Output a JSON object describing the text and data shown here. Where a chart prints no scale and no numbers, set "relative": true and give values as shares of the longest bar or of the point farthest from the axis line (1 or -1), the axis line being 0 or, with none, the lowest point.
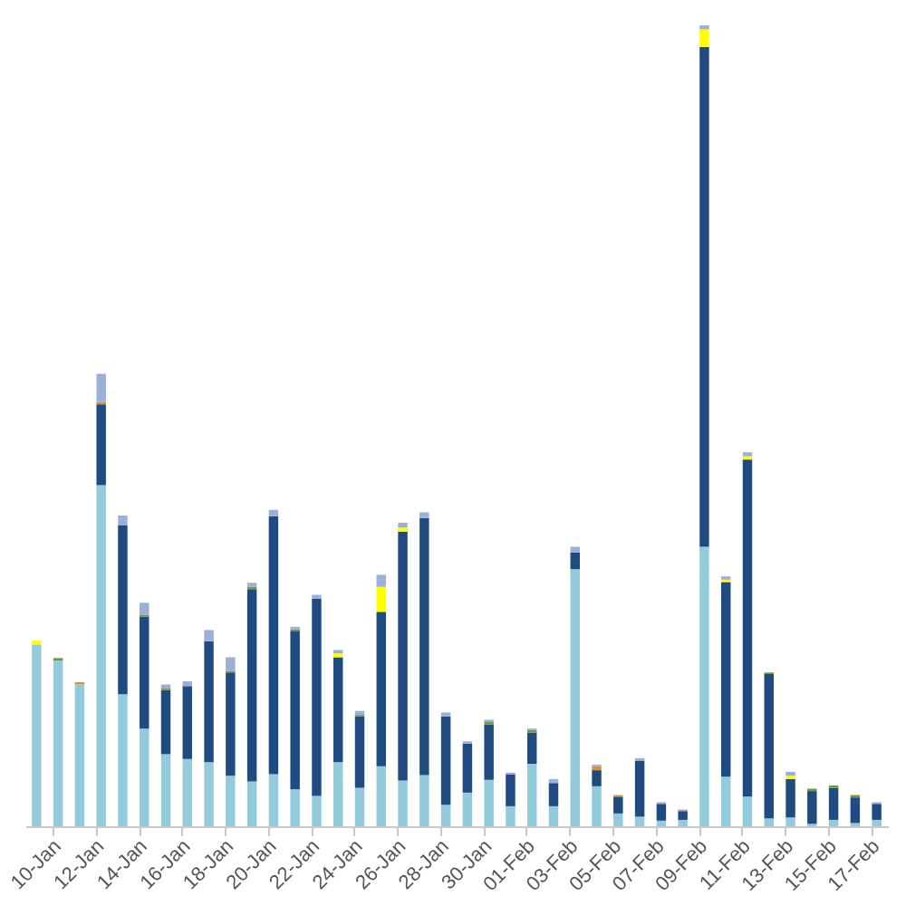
{
  "chart_data": {
    "type": "bar",
    "stacked": true,
    "relative": true,
    "categories": [
      null,
      "10-Jan",
      null,
      "12-Jan",
      null,
      "14-Jan",
      null,
      "16-Jan",
      null,
      "18-Jan",
      null,
      "20-Jan",
      null,
      "22-Jan",
      null,
      "24-Jan",
      null,
      "26-Jan",
      null,
      "28-Jan",
      null,
      "30-Jan",
      null,
      "01-Feb",
      null,
      "03-Feb",
      null,
      "05-Feb",
      null,
      "07-Feb",
      null,
      "09-Feb",
      null,
      "11-Feb",
      null,
      "13-Feb",
      null,
      "15-Feb",
      null,
      "17-Feb"
    ],
    "series": [
      {
        "color": "#93cbdc",
        "values": [
          0.227,
          0.207,
          0.177,
          0.426,
          0.165,
          0.122,
          0.09,
          0.084,
          0.08,
          0.063,
          0.056,
          0.065,
          0.046,
          0.038,
          0.08,
          0.048,
          0.075,
          0.057,
          0.064,
          0.027,
          0.042,
          0.058,
          0.025,
          0.078,
          0.025,
          0.321,
          0.05,
          0.016,
          0.012,
          0.007,
          0.008,
          0.349,
          0.062,
          0.037,
          0.01,
          0.011,
          0.003,
          0.008,
          0.004,
          0.008
        ]
      },
      {
        "color": "#1f4b81",
        "values": [
          null,
          null,
          null,
          0.101,
          0.211,
          0.14,
          0.08,
          0.091,
          0.151,
          0.129,
          0.24,
          0.322,
          0.198,
          0.246,
          0.131,
          0.089,
          0.192,
          0.311,
          0.321,
          0.11,
          0.061,
          0.069,
          0.04,
          0.039,
          0.029,
          0.021,
          0.02,
          0.021,
          0.07,
          0.021,
          0.011,
          0.624,
          0.243,
          0.421,
          0.18,
          0.048,
          0.041,
          0.04,
          0.032,
          0.02
        ]
      },
      {
        "color": "#6f9a3e",
        "values": [
          null,
          0.003,
          null,
          null,
          null,
          0.002,
          0.002,
          null,
          null,
          0.002,
          0.003,
          null,
          0.002,
          null,
          null,
          0.002,
          0.001,
          null,
          null,
          null,
          null,
          0.003,
          null,
          0.003,
          null,
          null,
          null,
          null,
          null,
          null,
          null,
          null,
          null,
          null,
          0.002,
          null,
          0.003,
          0.003,
          0.003,
          null
        ]
      },
      {
        "color": "#ffff00",
        "values": [
          0.005,
          null,
          null,
          null,
          null,
          null,
          null,
          null,
          null,
          null,
          null,
          null,
          null,
          null,
          0.005,
          null,
          0.031,
          0.005,
          null,
          null,
          null,
          null,
          null,
          null,
          null,
          null,
          null,
          null,
          null,
          null,
          null,
          0.022,
          0.003,
          0.004,
          null,
          0.004,
          null,
          null,
          null,
          null
        ]
      },
      {
        "color": "#d9933a",
        "values": [
          null,
          null,
          0.003,
          0.003,
          null,
          null,
          null,
          null,
          null,
          null,
          null,
          null,
          null,
          null,
          null,
          null,
          null,
          null,
          null,
          null,
          null,
          null,
          null,
          null,
          null,
          null,
          0.005,
          0.002,
          null,
          null,
          null,
          null,
          null,
          null,
          null,
          null,
          null,
          null,
          null,
          null
        ]
      },
      {
        "color": "#9cafd6",
        "values": [
          null,
          null,
          null,
          0.035,
          0.012,
          0.015,
          0.005,
          0.006,
          0.014,
          0.017,
          0.005,
          0.008,
          0.003,
          0.005,
          0.004,
          0.005,
          0.015,
          0.006,
          0.007,
          0.005,
          0.003,
          0.003,
          0.002,
          0.002,
          0.005,
          0.007,
          0.002,
          null,
          0.003,
          0.002,
          0.002,
          0.005,
          0.004,
          0.005,
          null,
          0.005,
          null,
          null,
          null,
          0.002
        ]
      }
    ]
  }
}
